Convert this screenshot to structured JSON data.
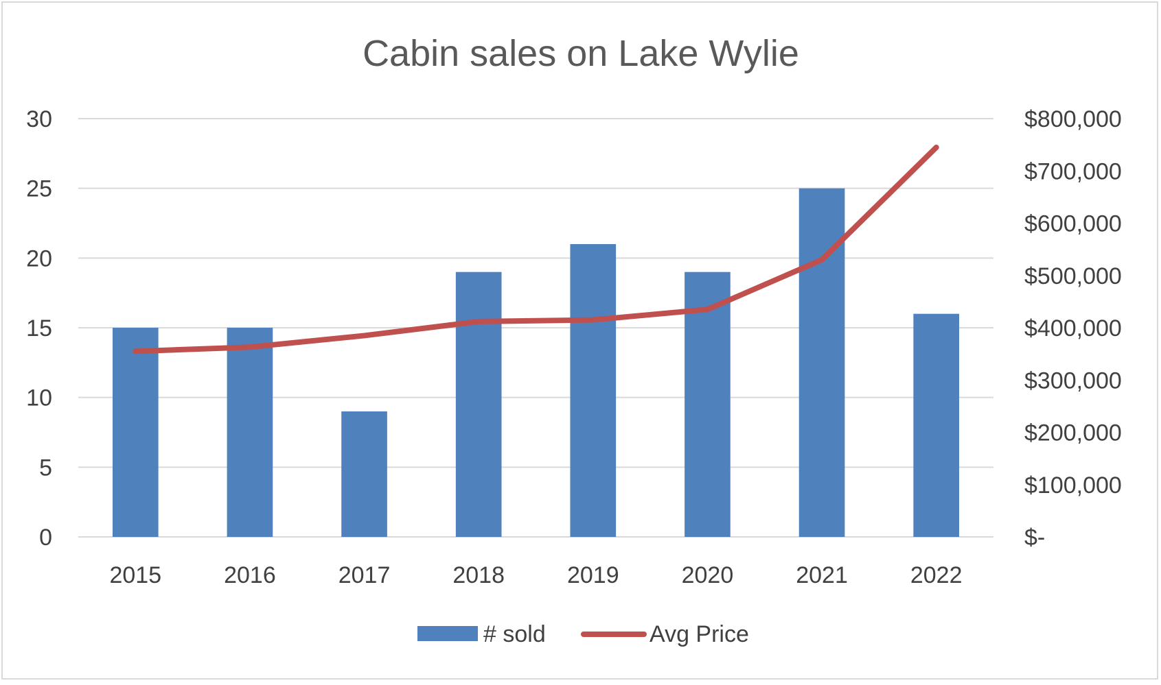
{
  "chart_data": {
    "type": "bar",
    "title": "Cabin sales on Lake Wylie",
    "categories": [
      "2015",
      "2016",
      "2017",
      "2018",
      "2019",
      "2020",
      "2021",
      "2022"
    ],
    "series": [
      {
        "name": "# sold",
        "type": "bar",
        "axis": "left",
        "color": "#4f81bd",
        "values": [
          15,
          15,
          9,
          19,
          21,
          19,
          25,
          16
        ]
      },
      {
        "name": "Avg Price",
        "type": "line",
        "axis": "right",
        "color": "#c0504d",
        "values": [
          355000,
          363000,
          385000,
          412000,
          415000,
          435000,
          530000,
          745000
        ]
      }
    ],
    "y_left": {
      "min": 0,
      "max": 30,
      "ticks": [
        0,
        5,
        10,
        15,
        20,
        25,
        30
      ],
      "tick_labels": [
        "0",
        "5",
        "10",
        "15",
        "20",
        "25",
        "30"
      ]
    },
    "y_right": {
      "min": 0,
      "max": 800000,
      "ticks": [
        0,
        100000,
        200000,
        300000,
        400000,
        500000,
        600000,
        700000,
        800000
      ],
      "tick_labels": [
        "$-",
        "$100,000",
        "$200,000",
        "$300,000",
        "$400,000",
        "$500,000",
        "$600,000",
        "$700,000",
        "$800,000"
      ]
    },
    "grid": true,
    "legend_position": "bottom-center",
    "xlabel": "",
    "ylabel": ""
  }
}
